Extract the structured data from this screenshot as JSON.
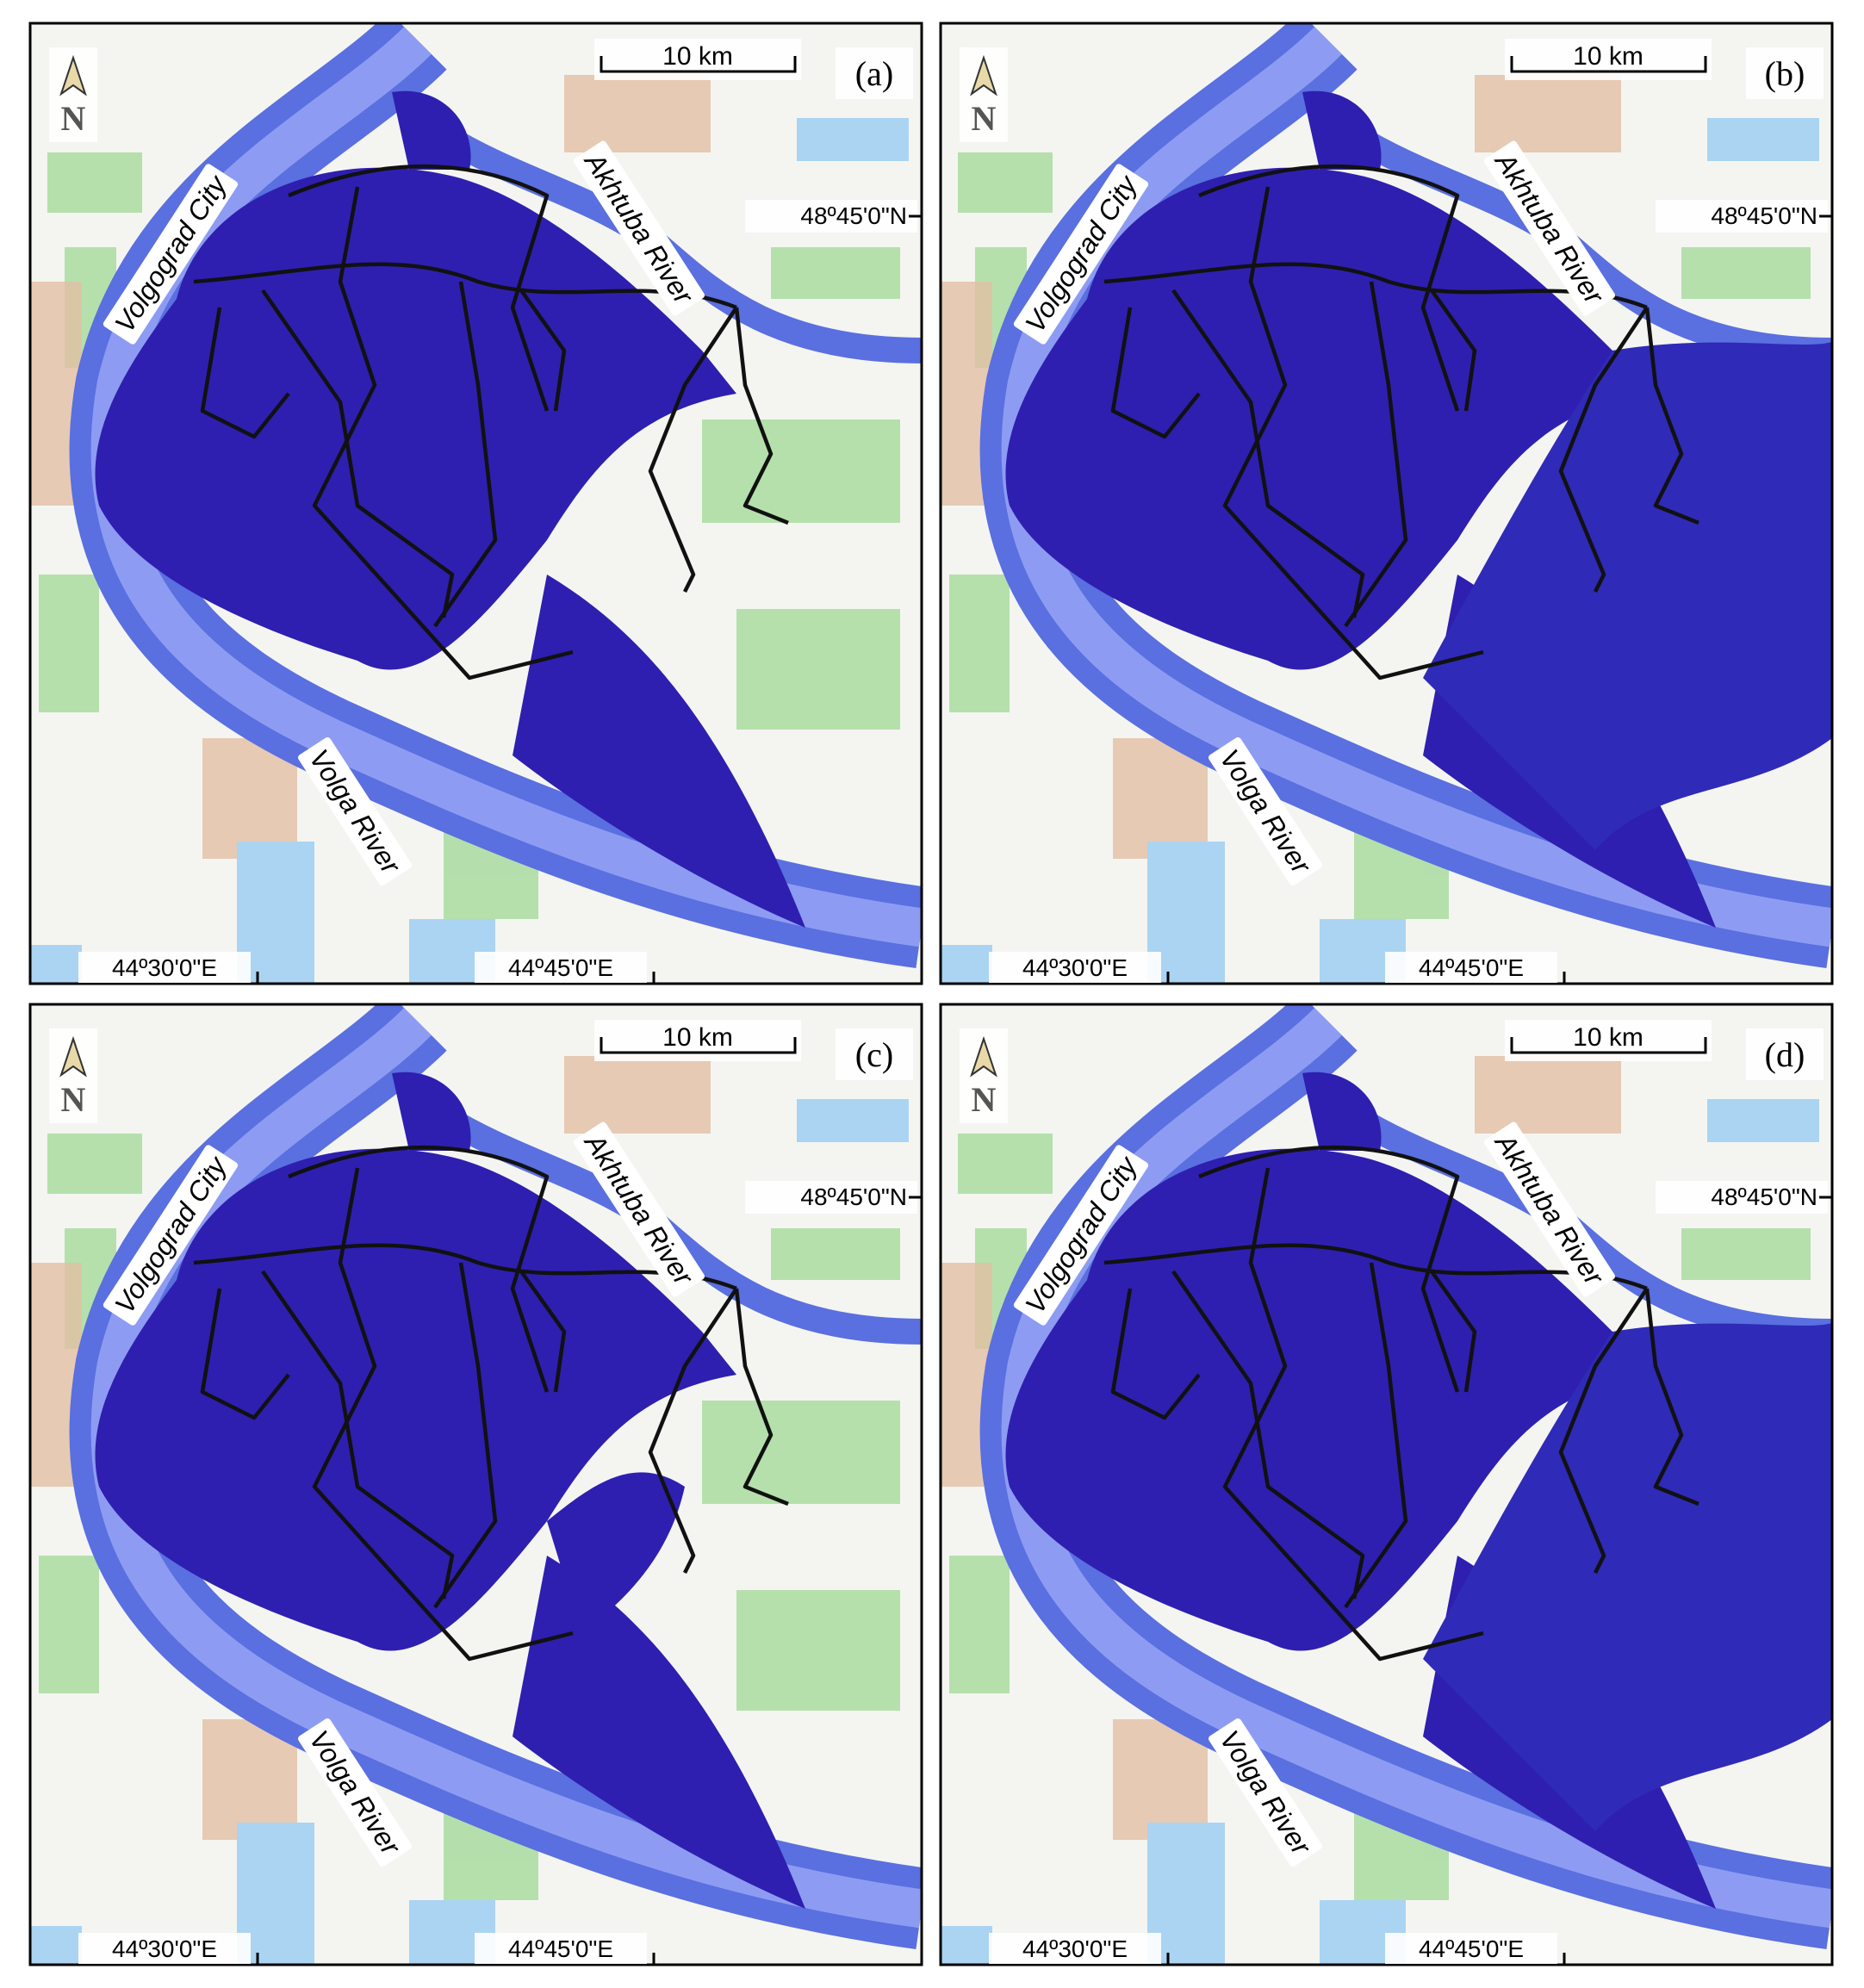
{
  "panels": [
    {
      "label": "(a)",
      "north": "N",
      "scale": "10 km",
      "latitude": "48º45'0\"N",
      "longitudes": [
        "44º30'0\"E",
        "44º45'0\"E"
      ],
      "places": [
        "Volgograd City",
        "Akhtuba River",
        "Volga River"
      ]
    },
    {
      "label": "(b)",
      "north": "N",
      "scale": "10 km",
      "latitude": "48º45'0\"N",
      "longitudes": [
        "44º30'0\"E",
        "44º45'0\"E"
      ],
      "places": [
        "Volgograd City",
        "Akhtuba River",
        "Volga River"
      ]
    },
    {
      "label": "(c)",
      "north": "N",
      "scale": "10 km",
      "latitude": "48º45'0\"N",
      "longitudes": [
        "44º30'0\"E",
        "44º45'0\"E"
      ],
      "places": [
        "Volgograd City",
        "Akhtuba River",
        "Volga River"
      ]
    },
    {
      "label": "(d)",
      "north": "N",
      "scale": "10 km",
      "latitude": "48º45'0\"N",
      "longitudes": [
        "44º30'0\"E",
        "44º45'0\"E"
      ],
      "places": [
        "Volgograd City",
        "Akhtuba River",
        "Volga River"
      ]
    }
  ]
}
